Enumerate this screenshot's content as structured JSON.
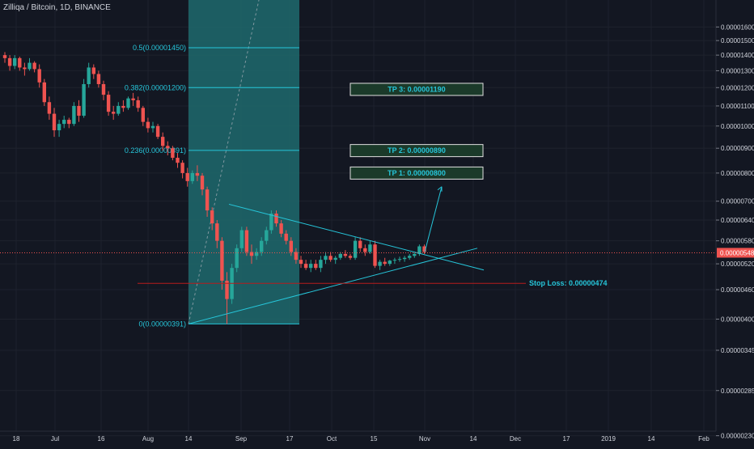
{
  "header": {
    "title": "Zilliqa / Bitcoin, 1D, BINANCE"
  },
  "chart_data": {
    "type": "candlestick",
    "title": "Zilliqa / Bitcoin, 1D, BINANCE",
    "symbol": "Zilliqa / Bitcoin",
    "interval": "1D",
    "exchange": "BINANCE",
    "y_scale": "log",
    "ylim": [
      2.35e-06,
      1.75e-05
    ],
    "y_ticks": [
      "0.00001600",
      "0.00001500",
      "0.00001400",
      "0.00001300",
      "0.00001200",
      "0.00001100",
      "0.00001000",
      "0.00000900",
      "0.00000800",
      "0.00000700",
      "0.00000640",
      "0.00000580",
      "0.00000520",
      "0.00000460",
      "0.00000400",
      "0.00000345",
      "0.00000285",
      "0.00000230"
    ],
    "x_ticks": [
      "18",
      "Jul",
      "16",
      "Aug",
      "14",
      "Sep",
      "17",
      "Oct",
      "15",
      "Nov",
      "14",
      "Dec",
      "17",
      "2019",
      "14",
      "Feb"
    ],
    "current_price": "0.00000548",
    "fibonacci": {
      "zone_color": "#1e6a6d",
      "line_color": "#26c6da",
      "levels": [
        {
          "label": "0.5(0.00001450)",
          "value": 1.45e-05
        },
        {
          "label": "0.382(0.00001200)",
          "value": 1.2e-05
        },
        {
          "label": "0.236(0.00000891)",
          "value": 8.91e-06
        },
        {
          "label": "0(0.00000391)",
          "value": 3.91e-06
        }
      ]
    },
    "targets": [
      {
        "label": "TP 3: 0.00001190",
        "value": 1.19e-05
      },
      {
        "label": "TP 2: 0.00000890",
        "value": 8.9e-06
      },
      {
        "label": "TP 1: 0.00000800",
        "value": 8e-06
      }
    ],
    "stop_loss": {
      "label": "Stop Loss: 0.00000474",
      "value": 4.74e-06
    },
    "colors": {
      "up": "#26a69a",
      "down": "#ef5350",
      "background": "#131722",
      "grid": "#1e222d",
      "text": "#d1d4dc",
      "trendline": "#26c6da"
    },
    "candles": [
      [
        14000000,
        14200000,
        13500000,
        13800000
      ],
      [
        13800000,
        14000000,
        13000000,
        13300000
      ],
      [
        13300000,
        14000000,
        13100000,
        13800000
      ],
      [
        13800000,
        13900000,
        13000000,
        13200000
      ],
      [
        13200000,
        13500000,
        12700000,
        13100000
      ],
      [
        13100000,
        13800000,
        13000000,
        13500000
      ],
      [
        13500000,
        13600000,
        12900000,
        13100000
      ],
      [
        13100000,
        13400000,
        12000000,
        12300000
      ],
      [
        12300000,
        12500000,
        11000000,
        11200000
      ],
      [
        11200000,
        11500000,
        10300000,
        10600000
      ],
      [
        10600000,
        10900000,
        9500000,
        9800000
      ],
      [
        9800000,
        10300000,
        9500000,
        10100000
      ],
      [
        10100000,
        10500000,
        9900000,
        10300000
      ],
      [
        10300000,
        10400000,
        9900000,
        10100000
      ],
      [
        10100000,
        11200000,
        10000000,
        11000000
      ],
      [
        11000000,
        11300000,
        10200000,
        10500000
      ],
      [
        10500000,
        12500000,
        10400000,
        12200000
      ],
      [
        12200000,
        13500000,
        12000000,
        13200000
      ],
      [
        13200000,
        13400000,
        12500000,
        12800000
      ],
      [
        12800000,
        13000000,
        12000000,
        12200000
      ],
      [
        12200000,
        12400000,
        11300000,
        11600000
      ],
      [
        11600000,
        11800000,
        10500000,
        10700000
      ],
      [
        10700000,
        11000000,
        10300000,
        10600000
      ],
      [
        10600000,
        11200000,
        10500000,
        11000000
      ],
      [
        11000000,
        11300000,
        10700000,
        10900000
      ],
      [
        10900000,
        11500000,
        10800000,
        11400000
      ],
      [
        11400000,
        11700000,
        11000000,
        11300000
      ],
      [
        11300000,
        11500000,
        10700000,
        10900000
      ],
      [
        10900000,
        11000000,
        10000000,
        10200000
      ],
      [
        10200000,
        10400000,
        9700000,
        9900000
      ],
      [
        9900000,
        10200000,
        9700000,
        10000000
      ],
      [
        10000000,
        10100000,
        9400000,
        9500000
      ],
      [
        9500000,
        9700000,
        8900000,
        9100000
      ],
      [
        9100000,
        9300000,
        8700000,
        9000000
      ],
      [
        9000000,
        9100000,
        8500000,
        8600000
      ],
      [
        8600000,
        8800000,
        8200000,
        8400000
      ],
      [
        8400000,
        8500000,
        7800000,
        8000000
      ],
      [
        8000000,
        8200000,
        7500000,
        7700000
      ],
      [
        7700000,
        8100000,
        7600000,
        8000000
      ],
      [
        8000000,
        8300000,
        7700000,
        7900000
      ],
      [
        7900000,
        8000000,
        7200000,
        7400000
      ],
      [
        7400000,
        7500000,
        6500000,
        6700000
      ],
      [
        6700000,
        6800000,
        6100000,
        6300000
      ],
      [
        6300000,
        6400000,
        5600000,
        5800000
      ],
      [
        5800000,
        5900000,
        4600000,
        4800000
      ],
      [
        4800000,
        5000000,
        3910000,
        4400000
      ],
      [
        4400000,
        5200000,
        4300000,
        5100000
      ],
      [
        5100000,
        5700000,
        5000000,
        5600000
      ],
      [
        5600000,
        6200000,
        5500000,
        6100000
      ],
      [
        6100000,
        6200000,
        5400000,
        5500000
      ],
      [
        5500000,
        5700000,
        5200000,
        5400000
      ],
      [
        5400000,
        5600000,
        5300000,
        5500000
      ],
      [
        5500000,
        5900000,
        5400000,
        5800000
      ],
      [
        5800000,
        6200000,
        5700000,
        6100000
      ],
      [
        6100000,
        6700000,
        6000000,
        6600000
      ],
      [
        6600000,
        6700000,
        6200000,
        6300000
      ],
      [
        6300000,
        6400000,
        5900000,
        6000000
      ],
      [
        6000000,
        6100000,
        5700000,
        5800000
      ],
      [
        5800000,
        5900000,
        5400000,
        5500000
      ],
      [
        5500000,
        5600000,
        5200000,
        5300000
      ],
      [
        5300000,
        5400000,
        5100000,
        5200000
      ],
      [
        5200000,
        5300000,
        5050000,
        5100000
      ],
      [
        5100000,
        5300000,
        5000000,
        5200000
      ],
      [
        5200000,
        5300000,
        5050000,
        5100000
      ],
      [
        5100000,
        5400000,
        5000000,
        5300000
      ],
      [
        5300000,
        5500000,
        5200000,
        5400000
      ],
      [
        5400000,
        5500000,
        5250000,
        5300000
      ],
      [
        5300000,
        5400000,
        5200000,
        5350000
      ],
      [
        5350000,
        5500000,
        5300000,
        5450000
      ],
      [
        5450000,
        5550000,
        5350000,
        5400000
      ],
      [
        5400000,
        5450000,
        5300000,
        5350000
      ],
      [
        5350000,
        5900000,
        5300000,
        5800000
      ],
      [
        5800000,
        5900000,
        5500000,
        5600000
      ],
      [
        5600000,
        5700000,
        5400000,
        5500000
      ],
      [
        5500000,
        5800000,
        5450000,
        5700000
      ],
      [
        5700000,
        5800000,
        5100000,
        5150000
      ],
      [
        5150000,
        5300000,
        5050000,
        5250000
      ],
      [
        5250000,
        5350000,
        5150000,
        5200000
      ],
      [
        5200000,
        5300000,
        5150000,
        5280000
      ],
      [
        5280000,
        5350000,
        5200000,
        5300000
      ],
      [
        5300000,
        5380000,
        5250000,
        5320000
      ],
      [
        5320000,
        5400000,
        5250000,
        5350000
      ],
      [
        5350000,
        5450000,
        5300000,
        5400000
      ],
      [
        5400000,
        5480000,
        5350000,
        5450000
      ],
      [
        5450000,
        5700000,
        5400000,
        5650000
      ],
      [
        5650000,
        5700000,
        5450000,
        5500000
      ]
    ]
  }
}
